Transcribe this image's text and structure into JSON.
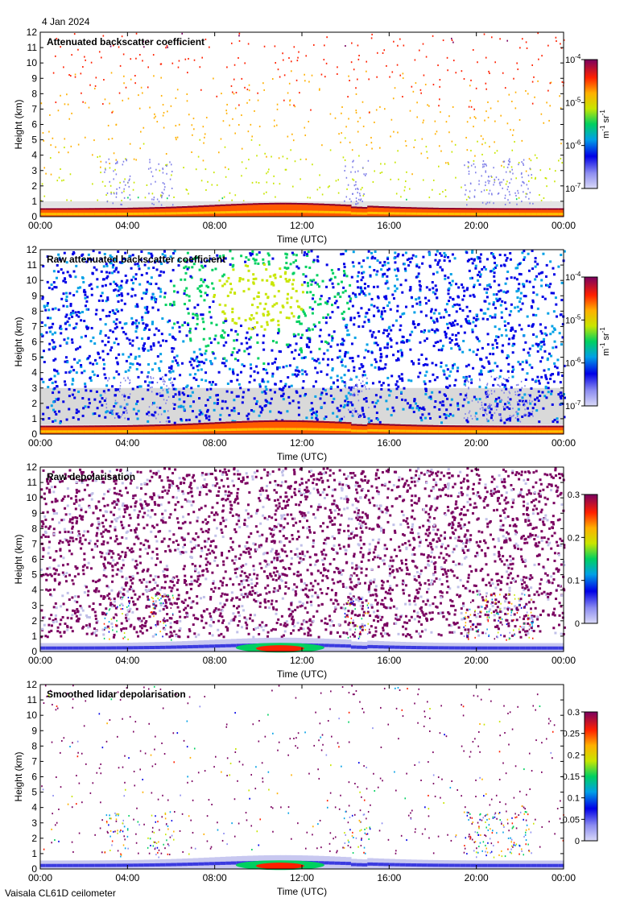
{
  "header": {
    "date": "4 Jan 2024"
  },
  "footer": {
    "instrument": "Vaisala CL61D ceilometer"
  },
  "chart_data": [
    {
      "type": "heatmap",
      "title": "Attenuated backscatter coefficient",
      "xlabel": "Time (UTC)",
      "ylabel": "Height (km)",
      "x_ticks": [
        "00:00",
        "04:00",
        "08:00",
        "12:00",
        "16:00",
        "20:00",
        "00:00"
      ],
      "y_ticks": [
        "0",
        "1",
        "2",
        "3",
        "4",
        "5",
        "6",
        "7",
        "8",
        "9",
        "10",
        "11",
        "12"
      ],
      "ylim": [
        0,
        12
      ],
      "colorbar": {
        "scale": "log",
        "range": [
          1e-07,
          0.0001
        ],
        "tick_labels": [
          {
            "base": "10",
            "exp": "-4"
          },
          {
            "base": "10",
            "exp": "-5"
          },
          {
            "base": "10",
            "exp": "-6"
          },
          {
            "base": "10",
            "exp": "-7"
          }
        ],
        "unit": {
          "a": "m",
          "a_exp": "-1",
          "b": " sr",
          "b_exp": "-1"
        }
      }
    },
    {
      "type": "heatmap",
      "title": "Raw attenuated backscatter coefficient",
      "xlabel": "Time (UTC)",
      "ylabel": "Height (km)",
      "x_ticks": [
        "00:00",
        "04:00",
        "08:00",
        "12:00",
        "16:00",
        "20:00",
        "00:00"
      ],
      "y_ticks": [
        "0",
        "1",
        "2",
        "3",
        "4",
        "5",
        "6",
        "7",
        "8",
        "9",
        "10",
        "11",
        "12"
      ],
      "ylim": [
        0,
        12
      ],
      "colorbar": {
        "scale": "log",
        "range": [
          1e-07,
          0.0001
        ],
        "tick_labels": [
          {
            "base": "10",
            "exp": "-4"
          },
          {
            "base": "10",
            "exp": "-5"
          },
          {
            "base": "10",
            "exp": "-6"
          },
          {
            "base": "10",
            "exp": "-7"
          }
        ],
        "unit": {
          "a": "m",
          "a_exp": "-1",
          "b": " sr",
          "b_exp": "-1"
        }
      }
    },
    {
      "type": "heatmap",
      "title": "Raw depolarisation",
      "xlabel": "Time (UTC)",
      "ylabel": "Height (km)",
      "x_ticks": [
        "00:00",
        "04:00",
        "08:00",
        "12:00",
        "16:00",
        "20:00",
        "00:00"
      ],
      "y_ticks": [
        "0",
        "1",
        "2",
        "3",
        "4",
        "5",
        "6",
        "7",
        "8",
        "9",
        "10",
        "11",
        "12"
      ],
      "ylim": [
        0,
        12
      ],
      "colorbar": {
        "scale": "linear",
        "range": [
          0,
          0.3
        ],
        "tick_labels": [
          "0.3",
          "0.2",
          "0.1",
          "0"
        ]
      }
    },
    {
      "type": "heatmap",
      "title": "Smoothed lidar depolarisation",
      "xlabel": "Time (UTC)",
      "ylabel": "Height (km)",
      "x_ticks": [
        "00:00",
        "04:00",
        "08:00",
        "12:00",
        "16:00",
        "20:00",
        "00:00"
      ],
      "y_ticks": [
        "0",
        "1",
        "2",
        "3",
        "4",
        "5",
        "6",
        "7",
        "8",
        "9",
        "10",
        "11",
        "12"
      ],
      "ylim": [
        0,
        12
      ],
      "colorbar": {
        "scale": "linear",
        "range": [
          0,
          0.3
        ],
        "tick_labels": [
          "0.3",
          "0.25",
          "0.2",
          "0.15",
          "0.1",
          "0.05",
          "0"
        ]
      }
    }
  ]
}
